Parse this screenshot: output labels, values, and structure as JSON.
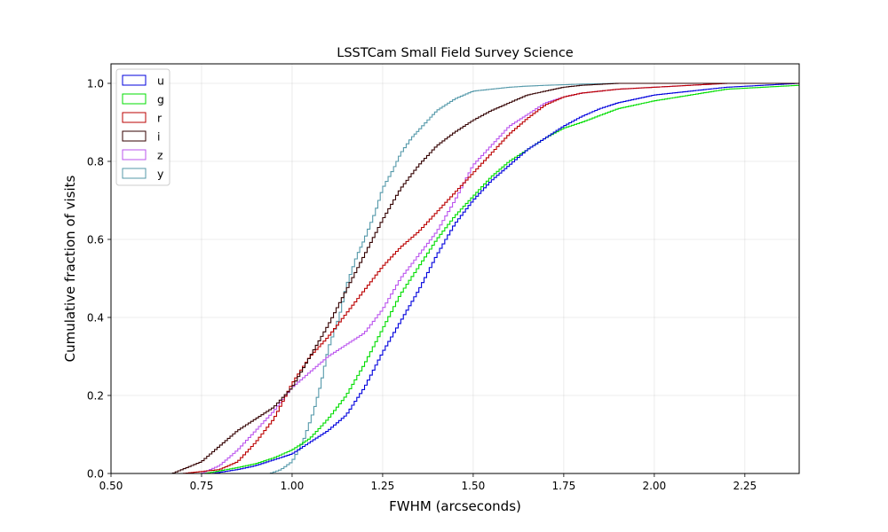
{
  "chart_data": {
    "type": "line",
    "title": "LSSTCam Small Field Survey Science",
    "xlabel": "FWHM (arcseconds)",
    "ylabel": "Cumulative fraction of visits",
    "xlim": [
      0.5,
      2.4
    ],
    "ylim": [
      0.0,
      1.05
    ],
    "xticks": [
      0.5,
      0.75,
      1.0,
      1.25,
      1.5,
      1.75,
      2.0,
      2.25
    ],
    "xtick_labels": [
      "0.50",
      "0.75",
      "1.00",
      "1.25",
      "1.50",
      "1.75",
      "2.00",
      "2.25"
    ],
    "yticks": [
      0.0,
      0.2,
      0.4,
      0.6,
      0.8,
      1.0
    ],
    "ytick_labels": [
      "0.0",
      "0.2",
      "0.4",
      "0.6",
      "0.8",
      "1.0"
    ],
    "grid": true,
    "legend_position": "top-left",
    "series": [
      {
        "name": "u",
        "color": "#0000dd",
        "x": [
          0.78,
          0.85,
          0.9,
          0.95,
          1.0,
          1.05,
          1.1,
          1.15,
          1.2,
          1.25,
          1.3,
          1.35,
          1.4,
          1.45,
          1.5,
          1.55,
          1.6,
          1.65,
          1.7,
          1.75,
          1.8,
          1.85,
          1.9,
          1.95,
          2.0,
          2.1,
          2.2,
          2.3,
          2.4
        ],
        "y": [
          0.0,
          0.01,
          0.02,
          0.035,
          0.05,
          0.08,
          0.11,
          0.15,
          0.22,
          0.31,
          0.39,
          0.47,
          0.56,
          0.64,
          0.7,
          0.75,
          0.79,
          0.83,
          0.86,
          0.89,
          0.915,
          0.935,
          0.95,
          0.96,
          0.97,
          0.98,
          0.99,
          0.995,
          1.0
        ]
      },
      {
        "name": "g",
        "color": "#00dd00",
        "x": [
          0.76,
          0.85,
          0.9,
          0.95,
          1.0,
          1.05,
          1.1,
          1.15,
          1.2,
          1.25,
          1.3,
          1.35,
          1.4,
          1.45,
          1.5,
          1.55,
          1.6,
          1.65,
          1.7,
          1.75,
          1.8,
          1.9,
          2.0,
          2.1,
          2.2,
          2.3,
          2.4
        ],
        "y": [
          0.0,
          0.015,
          0.025,
          0.04,
          0.06,
          0.09,
          0.14,
          0.2,
          0.28,
          0.37,
          0.46,
          0.53,
          0.6,
          0.66,
          0.71,
          0.76,
          0.8,
          0.83,
          0.86,
          0.885,
          0.9,
          0.935,
          0.955,
          0.97,
          0.985,
          0.99,
          0.995
        ]
      },
      {
        "name": "r",
        "color": "#bb0000",
        "x": [
          0.7,
          0.8,
          0.85,
          0.9,
          0.95,
          1.0,
          1.05,
          1.1,
          1.15,
          1.2,
          1.25,
          1.3,
          1.35,
          1.4,
          1.45,
          1.5,
          1.55,
          1.6,
          1.65,
          1.7,
          1.75,
          1.8,
          1.9,
          2.0,
          2.1,
          2.2,
          2.4
        ],
        "y": [
          0.0,
          0.01,
          0.03,
          0.08,
          0.14,
          0.23,
          0.3,
          0.35,
          0.41,
          0.47,
          0.53,
          0.58,
          0.62,
          0.67,
          0.72,
          0.77,
          0.82,
          0.87,
          0.91,
          0.945,
          0.965,
          0.975,
          0.985,
          0.99,
          0.995,
          1.0,
          1.0
        ]
      },
      {
        "name": "i",
        "color": "#330000",
        "x": [
          0.67,
          0.75,
          0.8,
          0.85,
          0.9,
          0.95,
          1.0,
          1.05,
          1.1,
          1.15,
          1.2,
          1.25,
          1.3,
          1.35,
          1.4,
          1.45,
          1.5,
          1.55,
          1.6,
          1.65,
          1.7,
          1.75,
          1.8,
          1.9,
          2.0,
          2.1
        ],
        "y": [
          0.0,
          0.03,
          0.07,
          0.11,
          0.14,
          0.17,
          0.22,
          0.3,
          0.38,
          0.47,
          0.56,
          0.65,
          0.73,
          0.79,
          0.84,
          0.875,
          0.905,
          0.93,
          0.95,
          0.97,
          0.98,
          0.99,
          0.995,
          1.0,
          1.0,
          1.0
        ]
      },
      {
        "name": "z",
        "color": "#bb55ee",
        "x": [
          0.75,
          0.8,
          0.85,
          0.9,
          0.95,
          1.0,
          1.05,
          1.1,
          1.15,
          1.2,
          1.25,
          1.3,
          1.35,
          1.4,
          1.45,
          1.5,
          1.55,
          1.6,
          1.65,
          1.7,
          1.75,
          1.8,
          1.9,
          2.0,
          2.1,
          2.2,
          2.4
        ],
        "y": [
          0.0,
          0.02,
          0.06,
          0.11,
          0.16,
          0.22,
          0.26,
          0.3,
          0.33,
          0.36,
          0.42,
          0.5,
          0.56,
          0.62,
          0.7,
          0.79,
          0.84,
          0.89,
          0.92,
          0.95,
          0.965,
          0.975,
          0.985,
          0.99,
          0.995,
          1.0,
          1.0
        ]
      },
      {
        "name": "y",
        "color": "#5599aa",
        "x": [
          0.94,
          0.97,
          1.0,
          1.03,
          1.06,
          1.08,
          1.1,
          1.13,
          1.15,
          1.18,
          1.2,
          1.23,
          1.25,
          1.28,
          1.3,
          1.33,
          1.35,
          1.38,
          1.4,
          1.45,
          1.5,
          1.55,
          1.6,
          1.65,
          1.7,
          1.8,
          1.9,
          2.0
        ],
        "y": [
          0.0,
          0.01,
          0.03,
          0.08,
          0.16,
          0.23,
          0.32,
          0.4,
          0.48,
          0.56,
          0.6,
          0.67,
          0.73,
          0.78,
          0.82,
          0.86,
          0.88,
          0.91,
          0.93,
          0.96,
          0.98,
          0.985,
          0.99,
          0.993,
          0.995,
          0.998,
          1.0,
          1.0
        ]
      }
    ]
  }
}
